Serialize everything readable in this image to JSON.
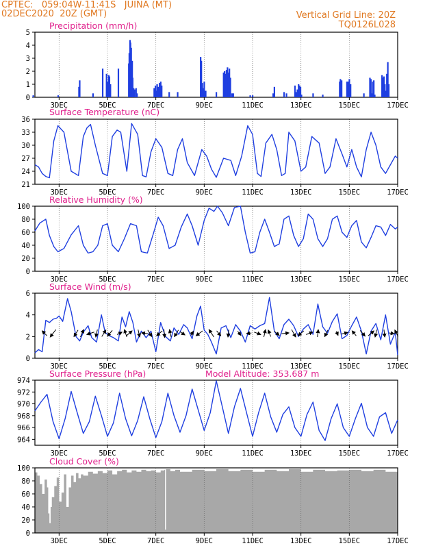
{
  "header": {
    "line1_left": "CPTEC:   059:04W-11:41S   JUINA (MT)",
    "line2_left": "02DEC2020  20Z (GMT)",
    "line1_right": "Vertical Grid Line: 20Z",
    "line2_right": "TQ0126L028"
  },
  "colors": {
    "header": "#e07820",
    "title": "#e0208c",
    "series": "#1f3fe0",
    "arrow": "#000000",
    "cloud": "#a8a8a8",
    "grid": "#707070"
  },
  "chart_data": [
    {
      "type": "bar",
      "title": "Precipitation (mm/h)",
      "ylim": [
        0,
        5
      ],
      "yticks": [
        0,
        1,
        2,
        3,
        4,
        5
      ],
      "xticks": [
        "3DEC",
        "5DEC",
        "7DEC",
        "9DEC",
        "11DEC",
        "13DEC",
        "15DEC",
        "17DEC"
      ],
      "x": [
        1.93,
        2.96,
        3.82,
        3.85,
        4.4,
        4.8,
        4.96,
        5.0,
        5.05,
        5.08,
        5.12,
        5.45,
        5.88,
        5.9,
        5.93,
        5.95,
        5.98,
        6.02,
        6.04,
        6.08,
        6.12,
        6.18,
        6.22,
        6.93,
        6.98,
        7.01,
        7.05,
        7.1,
        7.15,
        7.2,
        7.24,
        7.55,
        7.9,
        8.85,
        8.88,
        8.92,
        8.96,
        9.0,
        9.06,
        9.5,
        9.8,
        9.84,
        9.88,
        9.92,
        9.96,
        10.0,
        10.04,
        10.08,
        10.15,
        10.2,
        10.9,
        11.0,
        11.85,
        11.9,
        12.3,
        12.4,
        12.75,
        12.8,
        12.85,
        12.9,
        12.94,
        12.98,
        13.02,
        13.5,
        13.9,
        14.6,
        14.63,
        14.68,
        14.9,
        14.95,
        15.0,
        15.05,
        15.6,
        15.85,
        15.89,
        15.93,
        15.97,
        16.01,
        16.05,
        16.35,
        16.39,
        16.43,
        16.47,
        16.51,
        16.55,
        16.59,
        16.63
      ],
      "values": [
        0.15,
        0.15,
        0.8,
        1.3,
        0.3,
        2.2,
        1.8,
        1.2,
        1.7,
        1.6,
        1.0,
        2.2,
        2.6,
        3.4,
        4.4,
        4.2,
        3.8,
        2.8,
        1.5,
        0.7,
        0.6,
        0.7,
        0.3,
        0.7,
        0.9,
        0.5,
        1.0,
        0.8,
        1.1,
        1.2,
        0.9,
        0.4,
        0.4,
        3.1,
        2.8,
        1.1,
        0.7,
        1.2,
        0.5,
        0.4,
        1.9,
        2.0,
        1.8,
        2.1,
        2.3,
        1.9,
        2.2,
        1.5,
        0.3,
        0.3,
        0.15,
        0.15,
        0.3,
        0.8,
        0.4,
        0.3,
        0.9,
        0.4,
        0.6,
        1.0,
        0.9,
        0.8,
        0.2,
        0.3,
        0.2,
        1.2,
        1.4,
        1.3,
        1.2,
        1.2,
        1.4,
        1.0,
        0.3,
        1.5,
        1.4,
        0.3,
        1.2,
        1.3,
        0.2,
        1.7,
        1.5,
        1.6,
        1.0,
        0.5,
        1.8,
        2.7,
        1.0
      ]
    },
    {
      "type": "line",
      "title": "Surface Temperature (nC)",
      "ylim": [
        21,
        36
      ],
      "yticks": [
        21,
        24,
        27,
        30,
        33,
        36
      ],
      "xticks": [
        "3DEC",
        "5DEC",
        "7DEC",
        "9DEC",
        "11DEC",
        "13DEC",
        "15DEC",
        "17DEC"
      ],
      "x": [
        2.0,
        2.15,
        2.3,
        2.45,
        2.6,
        2.78,
        2.95,
        3.2,
        3.5,
        3.8,
        4.0,
        4.15,
        4.3,
        4.5,
        4.8,
        5.0,
        5.2,
        5.4,
        5.55,
        5.8,
        6.0,
        6.25,
        6.45,
        6.6,
        6.8,
        7.0,
        7.25,
        7.5,
        7.7,
        7.9,
        8.1,
        8.3,
        8.6,
        8.9,
        9.1,
        9.3,
        9.5,
        9.8,
        10.1,
        10.3,
        10.55,
        10.8,
        11.0,
        11.2,
        11.35,
        11.55,
        11.8,
        12.0,
        12.2,
        12.35,
        12.5,
        12.75,
        13.0,
        13.2,
        13.45,
        13.75,
        14.0,
        14.2,
        14.45,
        14.7,
        14.9,
        15.1,
        15.3,
        15.5,
        15.7,
        15.9,
        16.1,
        16.3,
        16.5,
        16.7,
        16.9,
        17.0
      ],
      "values": [
        25.5,
        25.0,
        23.5,
        22.8,
        22.5,
        31.0,
        34.5,
        33.0,
        24.0,
        23.0,
        32.0,
        34.0,
        34.8,
        30.0,
        23.5,
        23.0,
        32.0,
        33.5,
        33.0,
        24.0,
        35.0,
        32.5,
        23.0,
        22.7,
        28.5,
        31.5,
        29.5,
        23.5,
        23.0,
        29.0,
        31.5,
        26.0,
        23.0,
        29.0,
        27.5,
        24.5,
        22.6,
        27.0,
        26.5,
        23.0,
        27.5,
        34.5,
        32.5,
        23.5,
        22.8,
        30.5,
        32.5,
        29.0,
        23.0,
        23.5,
        33.0,
        31.0,
        24.0,
        25.0,
        32.0,
        30.5,
        23.5,
        25.0,
        31.5,
        28.0,
        25.0,
        29.0,
        25.0,
        22.7,
        29.0,
        33.0,
        30.0,
        25.0,
        23.5,
        25.5,
        27.5,
        27.0
      ]
    },
    {
      "type": "line",
      "title": "Relative Humidity (%)",
      "ylim": [
        0,
        100
      ],
      "yticks": [
        0,
        20,
        40,
        60,
        80,
        100
      ],
      "xticks": [
        "3DEC",
        "5DEC",
        "7DEC",
        "9DEC",
        "11DEC",
        "13DEC",
        "15DEC",
        "17DEC"
      ],
      "x": [
        2.0,
        2.2,
        2.45,
        2.6,
        2.78,
        2.95,
        3.2,
        3.5,
        3.8,
        4.0,
        4.2,
        4.4,
        4.6,
        4.8,
        5.0,
        5.2,
        5.45,
        5.7,
        5.95,
        6.2,
        6.4,
        6.65,
        6.9,
        7.1,
        7.3,
        7.55,
        7.8,
        8.05,
        8.3,
        8.5,
        8.75,
        9.0,
        9.2,
        9.4,
        9.55,
        9.75,
        10.0,
        10.25,
        10.5,
        10.7,
        10.9,
        11.1,
        11.3,
        11.5,
        11.7,
        11.9,
        12.1,
        12.3,
        12.5,
        12.7,
        12.9,
        13.1,
        13.3,
        13.5,
        13.7,
        13.9,
        14.1,
        14.3,
        14.5,
        14.7,
        14.9,
        15.1,
        15.3,
        15.5,
        15.7,
        15.9,
        16.1,
        16.3,
        16.5,
        16.7,
        16.9,
        17.0
      ],
      "values": [
        62,
        74,
        80,
        55,
        38,
        30,
        35,
        56,
        70,
        40,
        28,
        30,
        40,
        70,
        73,
        40,
        30,
        50,
        73,
        70,
        30,
        28,
        58,
        83,
        70,
        35,
        40,
        68,
        88,
        70,
        40,
        78,
        97,
        92,
        100,
        90,
        70,
        98,
        100,
        60,
        28,
        30,
        60,
        80,
        60,
        38,
        42,
        80,
        85,
        55,
        38,
        50,
        88,
        80,
        50,
        38,
        50,
        80,
        85,
        60,
        52,
        70,
        78,
        45,
        36,
        52,
        70,
        68,
        55,
        72,
        65,
        68
      ]
    },
    {
      "type": "line",
      "title": "Surface Wind (m/s)",
      "ylim": [
        0,
        6
      ],
      "yticks": [
        0,
        2,
        4,
        6
      ],
      "xticks": [
        "3DEC",
        "5DEC",
        "7DEC",
        "9DEC",
        "11DEC",
        "13DEC",
        "15DEC",
        "17DEC"
      ],
      "x": [
        2.0,
        2.15,
        2.3,
        2.45,
        2.6,
        2.75,
        2.9,
        3.0,
        3.15,
        3.35,
        3.5,
        3.7,
        3.85,
        4.0,
        4.2,
        4.35,
        4.55,
        4.75,
        4.9,
        5.05,
        5.25,
        5.45,
        5.6,
        5.75,
        5.9,
        6.05,
        6.2,
        6.4,
        6.6,
        6.8,
        7.0,
        7.2,
        7.4,
        7.6,
        7.75,
        7.95,
        8.15,
        8.3,
        8.5,
        8.7,
        8.85,
        9.0,
        9.15,
        9.3,
        9.5,
        9.7,
        9.9,
        10.1,
        10.3,
        10.5,
        10.7,
        10.9,
        11.1,
        11.3,
        11.5,
        11.7,
        11.9,
        12.1,
        12.3,
        12.5,
        12.7,
        12.9,
        13.1,
        13.3,
        13.5,
        13.7,
        13.9,
        14.1,
        14.3,
        14.5,
        14.7,
        14.9,
        15.1,
        15.3,
        15.5,
        15.7,
        15.9,
        16.1,
        16.3,
        16.5,
        16.7,
        16.9,
        17.0
      ],
      "values": [
        0.5,
        0.8,
        0.6,
        3.5,
        3.3,
        3.6,
        3.7,
        3.9,
        3.4,
        5.5,
        4.3,
        2.0,
        1.6,
        2.4,
        3.0,
        1.9,
        1.5,
        4.0,
        2.4,
        2.1,
        1.9,
        1.6,
        3.8,
        2.9,
        4.3,
        3.3,
        1.5,
        2.5,
        1.9,
        2.5,
        0.6,
        3.3,
        2.0,
        1.6,
        2.8,
        2.2,
        3.1,
        2.8,
        1.8,
        3.9,
        4.8,
        2.6,
        2.2,
        1.5,
        0.4,
        2.8,
        3.0,
        1.9,
        3.1,
        2.5,
        1.5,
        3.0,
        2.7,
        3.0,
        3.2,
        5.6,
        2.5,
        1.8,
        3.1,
        3.6,
        3.0,
        2.0,
        2.7,
        3.1,
        2.2,
        5.0,
        2.9,
        2.3,
        3.4,
        4.1,
        1.8,
        2.1,
        3.0,
        3.8,
        2.5,
        0.4,
        2.5,
        3.2,
        1.7,
        4.0,
        1.3,
        2.4,
        0.3
      ],
      "arrows_x": [
        2.4,
        2.75,
        3.7,
        3.95,
        4.3,
        4.55,
        4.85,
        5.1,
        5.5,
        5.75,
        5.9,
        6.3,
        6.55,
        6.75,
        7.15,
        7.35,
        7.6,
        7.85,
        8.1,
        8.5,
        8.8,
        9.3,
        9.6,
        10.0,
        10.45,
        10.85,
        11.2,
        11.5,
        11.7,
        12.0,
        12.35,
        12.7,
        13.0,
        13.35,
        13.7,
        14.05,
        14.5,
        14.8,
        15.2,
        15.55,
        15.9,
        16.1,
        16.45,
        16.75,
        16.95
      ],
      "arrows_u": [
        -0.6,
        -0.7,
        -0.5,
        0.4,
        -0.9,
        -0.2,
        0.5,
        -0.6,
        0.6,
        -0.3,
        0.7,
        0.2,
        -0.8,
        0.5,
        -0.7,
        0.1,
        -0.2,
        -0.5,
        0.6,
        0.3,
        -0.8,
        -0.6,
        0.5,
        -0.1,
        0.4,
        -0.6,
        0.8,
        0.2,
        -0.3,
        0.6,
        0.9,
        0.5,
        -0.7,
        0.8,
        0.1,
        -0.4,
        0.2,
        0.8,
        -0.5,
        0.6,
        0.7,
        -0.2,
        0.1,
        0.6,
        -0.4
      ],
      "arrows_v": [
        0.6,
        -0.9,
        -0.8,
        0.9,
        -0.3,
        -0.9,
        0.8,
        -0.7,
        0.3,
        0.9,
        0.6,
        -0.9,
        0.1,
        -0.8,
        -0.6,
        -1.0,
        0.9,
        -0.8,
        -0.4,
        0.5,
        -0.6,
        0.9,
        -0.6,
        -0.9,
        -0.5,
        -0.1,
        -0.3,
        0.9,
        0.8,
        -0.5,
        0.1,
        -0.9,
        -0.6,
        0.3,
        0.9,
        -0.8,
        -0.5,
        0.2,
        0.6,
        -0.7,
        0.6,
        -0.9,
        -0.9,
        -0.1,
        0.8
      ]
    },
    {
      "type": "line",
      "title": "Surface Pressure (hPa)",
      "subtitle": "Model Altitude: 353.687 m",
      "ylim": [
        963,
        974
      ],
      "yticks": [
        964,
        966,
        968,
        970,
        972,
        974
      ],
      "xticks": [
        "3DEC",
        "5DEC",
        "7DEC",
        "9DEC",
        "11DEC",
        "13DEC",
        "15DEC",
        "17DEC"
      ],
      "x": [
        2.0,
        2.25,
        2.5,
        2.75,
        3.0,
        3.25,
        3.5,
        3.75,
        4.0,
        4.25,
        4.5,
        4.75,
        5.0,
        5.25,
        5.5,
        5.75,
        6.0,
        6.25,
        6.5,
        6.75,
        7.0,
        7.25,
        7.5,
        7.75,
        8.0,
        8.25,
        8.5,
        8.75,
        9.0,
        9.25,
        9.5,
        9.75,
        10.0,
        10.25,
        10.5,
        10.75,
        11.0,
        11.25,
        11.5,
        11.75,
        12.0,
        12.25,
        12.5,
        12.75,
        13.0,
        13.25,
        13.5,
        13.75,
        14.0,
        14.25,
        14.5,
        14.75,
        15.0,
        15.25,
        15.5,
        15.75,
        16.0,
        16.25,
        16.5,
        16.75,
        17.0
      ],
      "values": [
        968.8,
        970.3,
        971.6,
        967.0,
        964.1,
        967.5,
        972.1,
        968.5,
        965.0,
        967.0,
        971.3,
        968.0,
        964.5,
        966.8,
        971.8,
        967.5,
        964.6,
        967.2,
        971.2,
        967.5,
        964.3,
        967.0,
        971.8,
        968.0,
        965.2,
        968.0,
        972.5,
        969.0,
        965.5,
        968.5,
        973.9,
        969.5,
        965.0,
        969.5,
        972.6,
        968.5,
        964.5,
        968.5,
        971.8,
        967.8,
        965.2,
        968.2,
        969.5,
        966.0,
        964.5,
        968.2,
        970.3,
        965.5,
        963.8,
        967.5,
        970.0,
        966.0,
        964.5,
        967.5,
        970.1,
        966.0,
        964.5,
        967.8,
        968.5,
        965.0,
        967.3
      ]
    },
    {
      "type": "area",
      "title": "Cloud Cover (%)",
      "ylim": [
        0,
        100
      ],
      "yticks": [
        0,
        20,
        40,
        60,
        80,
        100
      ],
      "xticks": [
        "3DEC",
        "5DEC",
        "7DEC",
        "9DEC",
        "11DEC",
        "13DEC",
        "15DEC",
        "17DEC"
      ],
      "x": [
        2.0,
        2.1,
        2.2,
        2.3,
        2.4,
        2.5,
        2.55,
        2.6,
        2.65,
        2.7,
        2.8,
        2.9,
        3.0,
        3.1,
        3.2,
        3.3,
        3.4,
        3.5,
        3.6,
        3.7,
        3.8,
        3.9,
        4.0,
        4.2,
        4.4,
        4.6,
        4.8,
        5.0,
        5.2,
        5.4,
        5.6,
        5.8,
        6.0,
        6.2,
        6.4,
        6.6,
        6.8,
        7.0,
        7.2,
        7.35,
        7.38,
        7.42,
        7.6,
        7.8,
        8.0,
        8.5,
        9.0,
        9.5,
        10.0,
        10.5,
        11.0,
        11.5,
        12.0,
        12.5,
        13.0,
        13.5,
        14.0,
        14.5,
        15.0,
        15.5,
        16.0,
        16.5,
        17.0
      ],
      "values": [
        93,
        88,
        75,
        60,
        82,
        70,
        30,
        15,
        40,
        55,
        72,
        85,
        48,
        62,
        90,
        40,
        70,
        88,
        78,
        92,
        84,
        90,
        88,
        94,
        91,
        95,
        92,
        96,
        90,
        95,
        97,
        93,
        96,
        94,
        97,
        95,
        96,
        93,
        96,
        97,
        5,
        98,
        95,
        97,
        94,
        97,
        95,
        98,
        95,
        97,
        94,
        97,
        95,
        98,
        94,
        97,
        95,
        96,
        97,
        95,
        97,
        94,
        96
      ]
    }
  ]
}
